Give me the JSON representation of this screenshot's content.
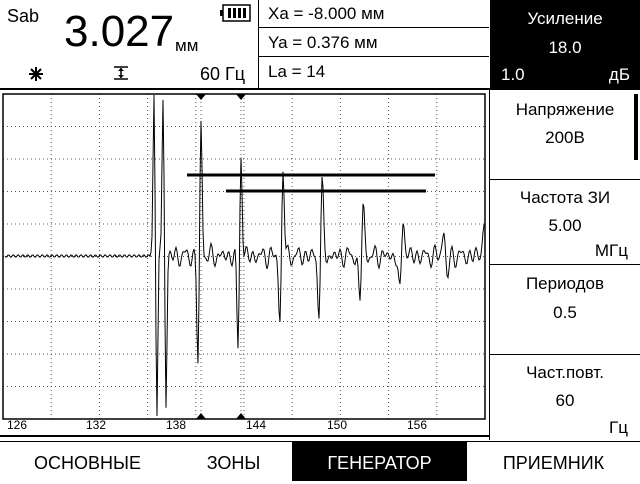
{
  "header": {
    "mode_label": "Sab",
    "main_value": "3.027",
    "main_unit": "мм",
    "freq_text": "60 Гц"
  },
  "measurements": {
    "xa": "Xa = -8.000 мм",
    "ya": "Ya = 0.376 мм",
    "la": "La = 14"
  },
  "gain": {
    "title": "Усиление",
    "value": "18.0",
    "step": "1.0",
    "unit": "дБ"
  },
  "params": [
    {
      "title": "Напряжение",
      "value": "200В",
      "unit": ""
    },
    {
      "title": "Частота ЗИ",
      "value": "5.00",
      "unit": "МГц"
    },
    {
      "title": "Периодов",
      "value": "0.5",
      "unit": ""
    },
    {
      "title": "Част.повт.",
      "value": "60",
      "unit": "Гц"
    }
  ],
  "axis": {
    "ticks": [
      "126",
      "132",
      "138",
      "144",
      "150",
      "156"
    ]
  },
  "tabs": [
    {
      "label": "ОСНОВНЫЕ",
      "active": false
    },
    {
      "label": "ЗОНЫ",
      "active": false
    },
    {
      "label": "ГЕНЕРАТОР",
      "active": true
    },
    {
      "label": "ПРИЕМНИК",
      "active": false
    }
  ],
  "colors": {
    "foreground": "#000000",
    "background": "#ffffff",
    "grid": "#555555"
  },
  "icons": [
    "battery-icon",
    "freeze-icon",
    "gate-marker-icon",
    "cursor-marker-icon"
  ]
}
